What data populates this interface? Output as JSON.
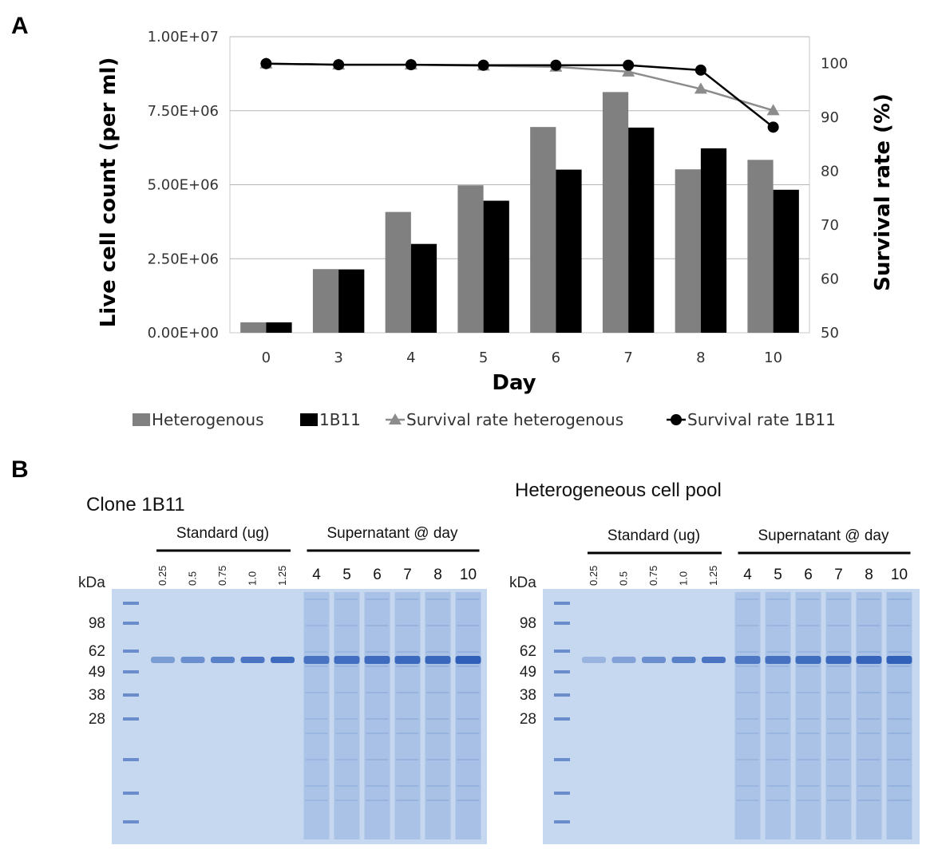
{
  "panel_a": {
    "letter": "A"
  },
  "panel_b": {
    "letter": "B"
  },
  "chart_data": {
    "type": "bar",
    "title": "",
    "xlabel": "Day",
    "ylabel": "Live cell count (per ml)",
    "y2label": "Survival rate (%)",
    "categories": [
      "0",
      "3",
      "4",
      "5",
      "6",
      "7",
      "8",
      "10"
    ],
    "ylim": [
      0,
      10000000
    ],
    "y_ticks": [
      "0.00E+00",
      "2.50E+06",
      "5.00E+06",
      "7.50E+06",
      "1.00E+07"
    ],
    "y2lim": [
      50,
      105
    ],
    "y2_ticks": [
      "50",
      "60",
      "70",
      "80",
      "90",
      "100"
    ],
    "grid": "horizontal major lines",
    "legend_position": "bottom",
    "series": [
      {
        "name": "Heterogenous",
        "kind": "bar",
        "axis": "left",
        "color": "#808080",
        "values": [
          350000,
          2150000,
          4080000,
          4980000,
          6950000,
          8130000,
          5520000,
          5840000
        ]
      },
      {
        "name": "1B11",
        "kind": "bar",
        "axis": "left",
        "color": "#000000",
        "values": [
          350000,
          2140000,
          3000000,
          4460000,
          5510000,
          6930000,
          6230000,
          4830000
        ]
      },
      {
        "name": "Survival rate heterogenous",
        "kind": "line",
        "marker": "triangle",
        "axis": "right",
        "color": "#8c8c8c",
        "values": [
          100,
          99.8,
          99.8,
          99.6,
          99.4,
          98.5,
          95.3,
          91.3
        ]
      },
      {
        "name": "Survival rate 1B11",
        "kind": "line",
        "marker": "circle",
        "axis": "right",
        "color": "#000000",
        "values": [
          100,
          99.8,
          99.8,
          99.7,
          99.7,
          99.7,
          98.8,
          88.2
        ]
      }
    ]
  },
  "gels": [
    {
      "title": "Clone 1B11",
      "standard_label": "Standard (ug)",
      "supernatant_label": "Supernatant @ day",
      "kda_label": "kDa",
      "markers": [
        "98",
        "62",
        "49",
        "38",
        "28"
      ],
      "standard_lanes": [
        "0.25",
        "0.5",
        "0.75",
        "1.0",
        "1.25"
      ],
      "day_lanes": [
        "4",
        "5",
        "6",
        "7",
        "8",
        "10"
      ],
      "standard_intensity": [
        0.5,
        0.6,
        0.72,
        0.82,
        0.9
      ],
      "day_intensity": [
        0.8,
        0.85,
        0.88,
        0.9,
        0.92,
        1.0
      ],
      "gel_color": "#c6d8ef",
      "band_color": "#2f5fb8"
    },
    {
      "title": "Heterogeneous cell pool",
      "standard_label": "Standard (ug)",
      "supernatant_label": "Supernatant @ day",
      "kda_label": "kDa",
      "markers": [
        "98",
        "62",
        "49",
        "38",
        "28"
      ],
      "standard_lanes": [
        "0.25",
        "0.5",
        "0.75",
        "1.0",
        "1.25"
      ],
      "day_lanes": [
        "4",
        "5",
        "6",
        "7",
        "8",
        "10"
      ],
      "standard_intensity": [
        0.3,
        0.45,
        0.6,
        0.72,
        0.82
      ],
      "day_intensity": [
        0.75,
        0.82,
        0.86,
        0.9,
        0.95,
        0.98
      ],
      "gel_color": "#c6d8ef",
      "band_color": "#2f5fb8"
    }
  ]
}
